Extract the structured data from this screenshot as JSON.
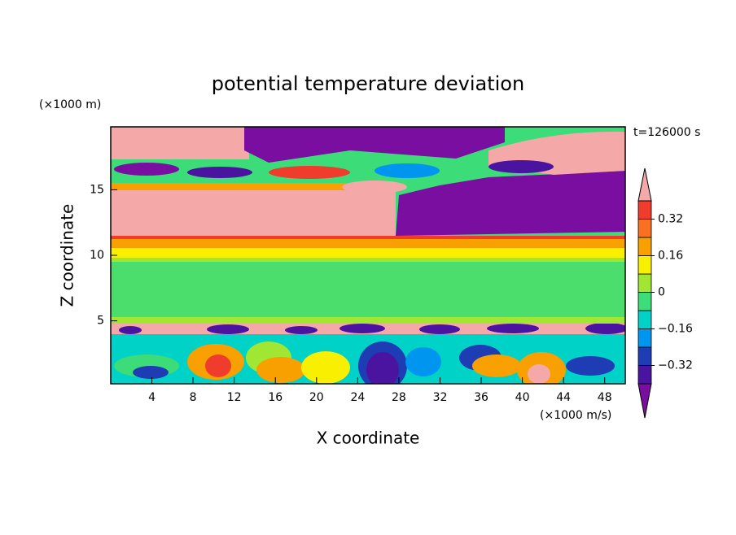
{
  "chart_data": {
    "type": "contour",
    "title": "potential temperature deviation",
    "x_label": "X coordinate",
    "y_label": "Z coordinate",
    "x_unit": "(×1000 m/s)",
    "y_unit": "(×1000 m)",
    "annotation": "t=126000 s",
    "xlim": [
      0,
      50
    ],
    "xticks": [
      4,
      8,
      12,
      16,
      20,
      24,
      28,
      32,
      36,
      40,
      44,
      48
    ],
    "ylim": [
      0.2,
      19.8
    ],
    "yticks": [
      5,
      10,
      15
    ],
    "colorbar": {
      "levels": [
        -0.4,
        -0.32,
        -0.24,
        -0.16,
        -0.08,
        0,
        0.08,
        0.16,
        0.24,
        0.32,
        0.4
      ],
      "ticks": [
        {
          "value": -0.32,
          "label": "−0.32"
        },
        {
          "value": -0.16,
          "label": "−0.16"
        },
        0,
        0.16,
        0.32
      ],
      "colors": [
        "#7a0ea0",
        "#4a14a0",
        "#1e3cb4",
        "#0096f0",
        "#00d2c8",
        "#3cdc78",
        "#a0e632",
        "#f8f000",
        "#f8a000",
        "#f87020",
        "#f03c2c",
        "#f4a8a8"
      ]
    }
  }
}
